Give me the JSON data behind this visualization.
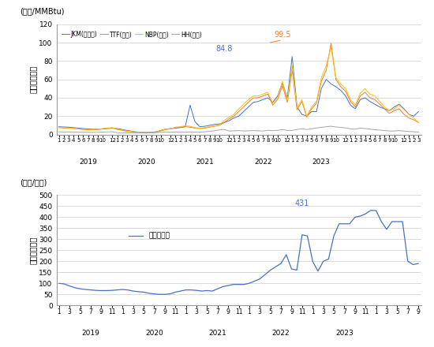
{
  "gas_title_unit": "(ドル/MMBtu)",
  "gas_ylabel": "ガス市場価格",
  "gas_ylim": [
    0,
    120
  ],
  "gas_yticks": [
    0,
    20,
    40,
    60,
    80,
    100,
    120
  ],
  "coal_title_unit": "(ドル/トン)",
  "coal_ylabel": "石炭市場価格",
  "coal_ylim": [
    0,
    500
  ],
  "coal_yticks": [
    0,
    50,
    100,
    150,
    200,
    250,
    300,
    350,
    400,
    450,
    500
  ],
  "jkm_color": "#4472C4",
  "ttf_color": "#ED7D31",
  "nbp_color": "#FFC000",
  "hh_color": "#A5A5A5",
  "coal_color": "#4472C4",
  "annotation_84_text": "84.8",
  "annotation_84_color": "#4472C4",
  "annotation_99_text": "99.5",
  "annotation_99_color": "#ED7D31",
  "annotation_431_text": "431",
  "annotation_431_color": "#4472C4",
  "legend_labels": [
    "JKM(アジア)",
    "TTF(欧州)",
    "NBP(英国)",
    "HH(米国)"
  ],
  "coal_legend_label": "豪州一般炭",
  "jkm": [
    8.5,
    8.2,
    8.0,
    7.5,
    7.0,
    6.5,
    6.0,
    5.8,
    5.7,
    6.0,
    6.5,
    7.0,
    6.5,
    5.5,
    4.5,
    3.5,
    2.8,
    2.5,
    2.3,
    2.5,
    3.0,
    4.5,
    6.0,
    6.5,
    7.0,
    7.5,
    8.5,
    32.0,
    14.0,
    8.5,
    9.0,
    10.0,
    11.0,
    11.5,
    13.0,
    15.0,
    18.0,
    20.0,
    25.0,
    30.0,
    35.0,
    36.0,
    38.0,
    40.0,
    35.0,
    42.0,
    56.0,
    40.0,
    84.8,
    30.0,
    22.0,
    20.0,
    25.0,
    25.0,
    50.0,
    60.0,
    55.0,
    52.0,
    48.0,
    42.0,
    32.0,
    28.0,
    38.0,
    40.0,
    36.0,
    33.0,
    30.0,
    28.0,
    26.0,
    30.0,
    33.0,
    28.0,
    22.0,
    20.0,
    25.0
  ],
  "ttf": [
    7.5,
    7.2,
    7.0,
    6.5,
    6.0,
    5.5,
    5.0,
    5.2,
    5.5,
    6.2,
    6.8,
    7.2,
    5.5,
    4.5,
    3.5,
    3.0,
    2.5,
    2.0,
    1.8,
    2.0,
    2.5,
    4.0,
    5.5,
    6.0,
    7.5,
    8.0,
    8.5,
    8.0,
    7.0,
    6.5,
    7.0,
    8.0,
    9.0,
    10.0,
    13.0,
    17.0,
    20.0,
    25.0,
    30.0,
    35.0,
    40.0,
    40.0,
    42.0,
    44.0,
    32.0,
    38.0,
    53.0,
    35.0,
    70.0,
    27.0,
    36.0,
    19.0,
    28.0,
    34.0,
    58.0,
    70.0,
    99.5,
    60.0,
    52.0,
    47.0,
    36.0,
    30.0,
    42.0,
    46.0,
    40.0,
    38.0,
    33.0,
    28.0,
    23.0,
    26.0,
    28.0,
    22.0,
    18.0,
    16.0,
    13.0
  ],
  "nbp": [
    7.8,
    7.4,
    7.2,
    6.8,
    6.2,
    5.8,
    5.2,
    5.4,
    5.8,
    6.4,
    7.0,
    7.5,
    5.8,
    4.8,
    3.8,
    3.2,
    2.6,
    2.2,
    2.0,
    2.2,
    2.6,
    4.2,
    5.8,
    6.2,
    8.0,
    8.5,
    9.5,
    9.0,
    7.5,
    7.0,
    7.5,
    8.5,
    9.5,
    10.5,
    15.0,
    19.0,
    22.0,
    28.0,
    33.0,
    38.0,
    42.0,
    42.0,
    44.0,
    46.0,
    34.0,
    40.0,
    58.0,
    37.0,
    75.0,
    29.0,
    38.0,
    20.0,
    30.0,
    36.0,
    62.0,
    75.0,
    95.0,
    62.0,
    55.0,
    50.0,
    38.0,
    32.0,
    45.0,
    50.0,
    44.0,
    42.0,
    36.0,
    30.0,
    26.0,
    28.0,
    32.0,
    27.0,
    22.0,
    18.0,
    13.0
  ],
  "hh": [
    3.0,
    2.8,
    2.8,
    2.7,
    2.6,
    2.5,
    2.4,
    2.3,
    2.5,
    2.7,
    2.9,
    3.0,
    2.0,
    1.9,
    1.8,
    1.8,
    1.7,
    1.6,
    1.5,
    1.8,
    2.0,
    2.5,
    2.8,
    2.5,
    2.7,
    2.8,
    2.5,
    2.8,
    2.6,
    2.5,
    3.0,
    3.5,
    4.0,
    5.0,
    5.5,
    3.8,
    4.0,
    4.2,
    3.8,
    4.0,
    4.2,
    4.0,
    3.8,
    4.5,
    4.2,
    4.5,
    5.5,
    4.5,
    4.5,
    5.5,
    6.2,
    5.5,
    6.2,
    7.2,
    7.8,
    8.5,
    9.0,
    8.2,
    7.8,
    7.2,
    6.2,
    5.8,
    7.0,
    6.5,
    5.8,
    5.2,
    4.8,
    4.2,
    3.8,
    3.8,
    4.2,
    3.8,
    3.2,
    3.0,
    2.8
  ],
  "coal": [
    100,
    97,
    88,
    80,
    75,
    72,
    70,
    68,
    67,
    67,
    68,
    70,
    72,
    70,
    65,
    62,
    60,
    55,
    52,
    50,
    50,
    52,
    60,
    65,
    70,
    70,
    68,
    65,
    67,
    65,
    75,
    85,
    90,
    95,
    95,
    95,
    100,
    110,
    120,
    140,
    160,
    175,
    190,
    230,
    165,
    160,
    320,
    315,
    200,
    155,
    200,
    210,
    315,
    370,
    370,
    370,
    400,
    405,
    415,
    431,
    430,
    380,
    345,
    380,
    380,
    380,
    200,
    185,
    190
  ]
}
